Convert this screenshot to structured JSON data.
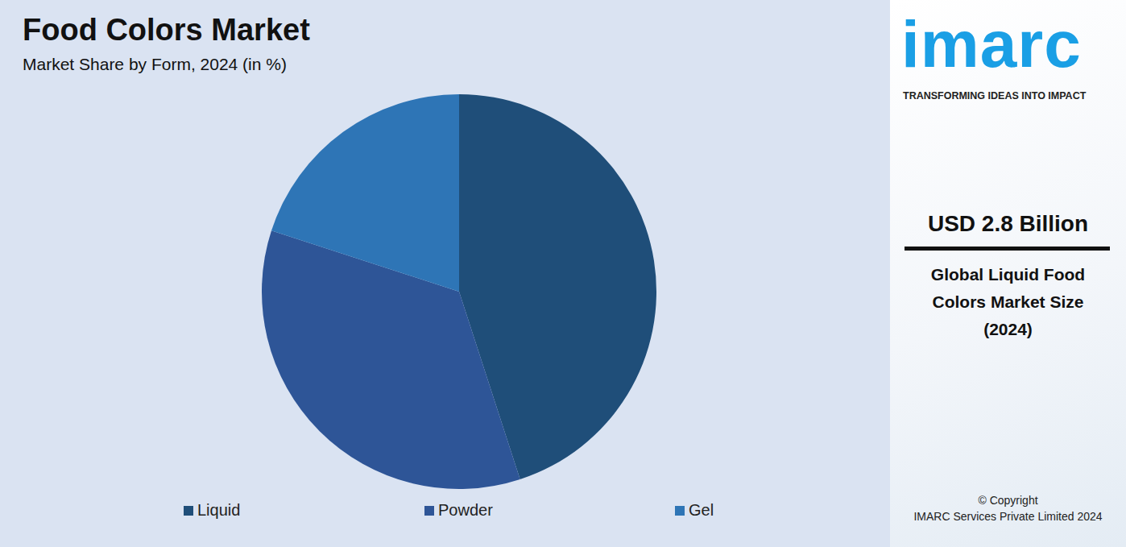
{
  "chart_data": {
    "type": "pie",
    "title": "Food Colors Market",
    "subtitle": "Market Share by Form, 2024 (in %)",
    "categories": [
      "Liquid",
      "Powder",
      "Gel"
    ],
    "values": [
      45,
      35,
      20
    ],
    "colors": [
      "#1f4e79",
      "#2e5597",
      "#2e75b6"
    ],
    "legend": "bottom",
    "annotations": [
      "imarc",
      "TRANSFORMING IDEAS INTO IMPACT",
      "USD 2.8 Billion",
      "Global Liquid Food Colors Market Size (2024)",
      "© Copyright",
      "IMARC Services Private Limited 2024"
    ]
  }
}
